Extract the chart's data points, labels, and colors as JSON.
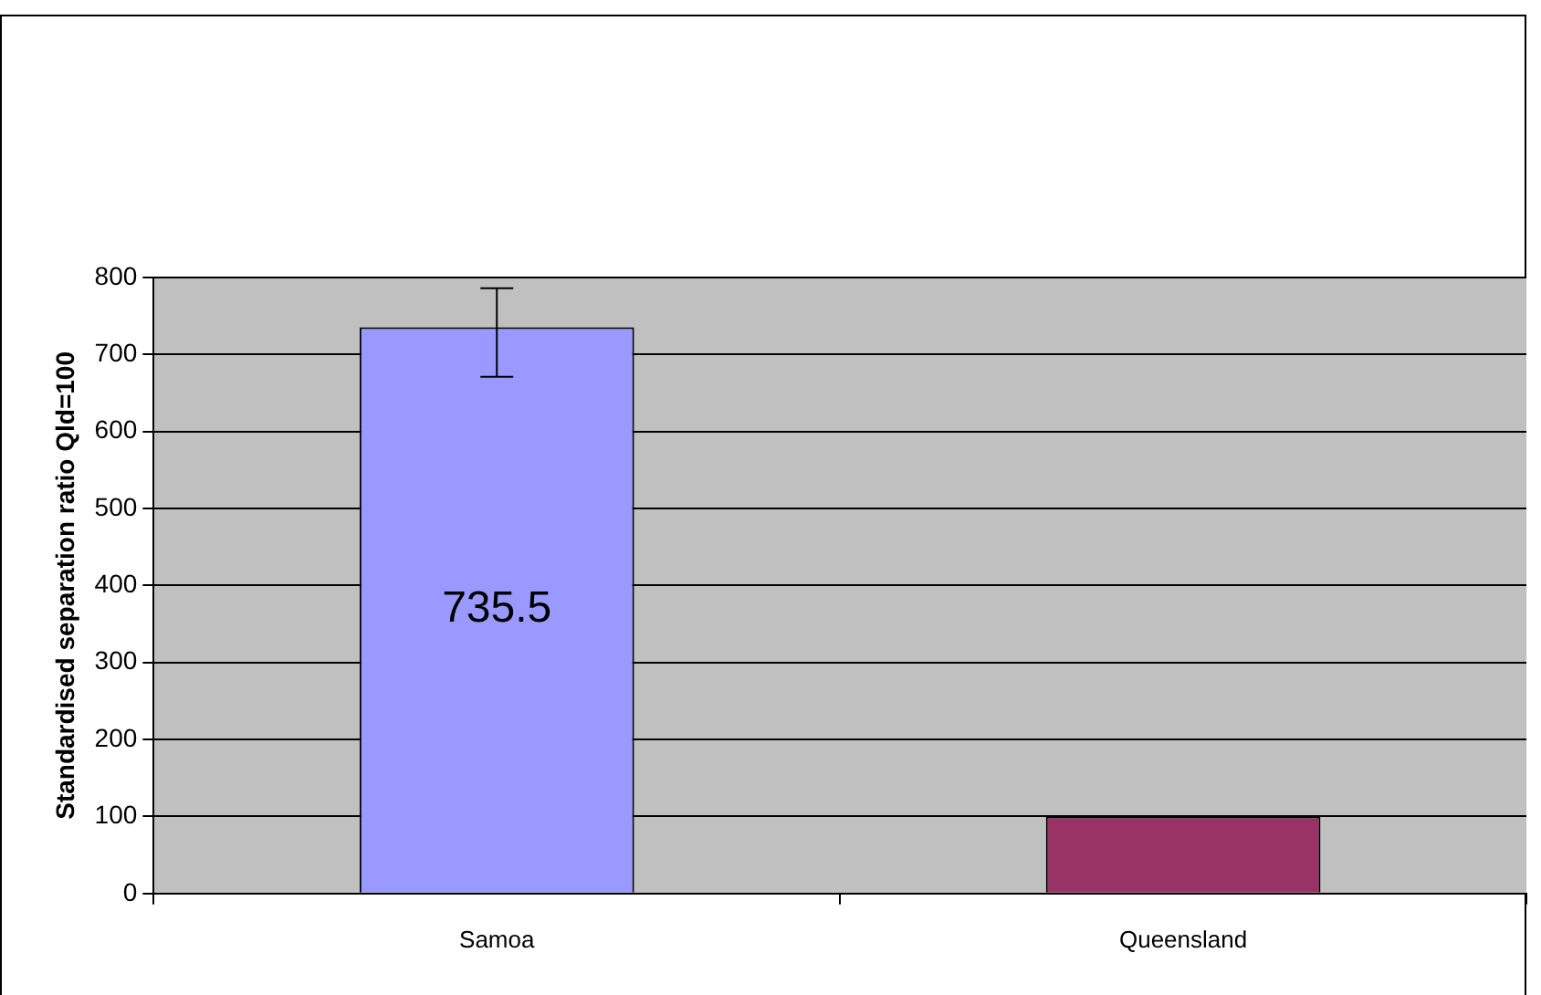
{
  "chart_data": {
    "type": "bar",
    "ylabel": "Standardised separation ratio Qld=100",
    "categories": [
      "Samoa",
      "Queensland"
    ],
    "values": [
      735.5,
      100
    ],
    "colors": [
      "#9999ff",
      "#993366"
    ],
    "errors": [
      [
        671,
        786
      ],
      null
    ],
    "value_labels": [
      "735.5",
      null
    ],
    "ylim": [
      0,
      800
    ],
    "yticks": [
      0,
      100,
      200,
      300,
      400,
      500,
      600,
      700,
      800
    ],
    "grid": "y",
    "legend": false
  }
}
